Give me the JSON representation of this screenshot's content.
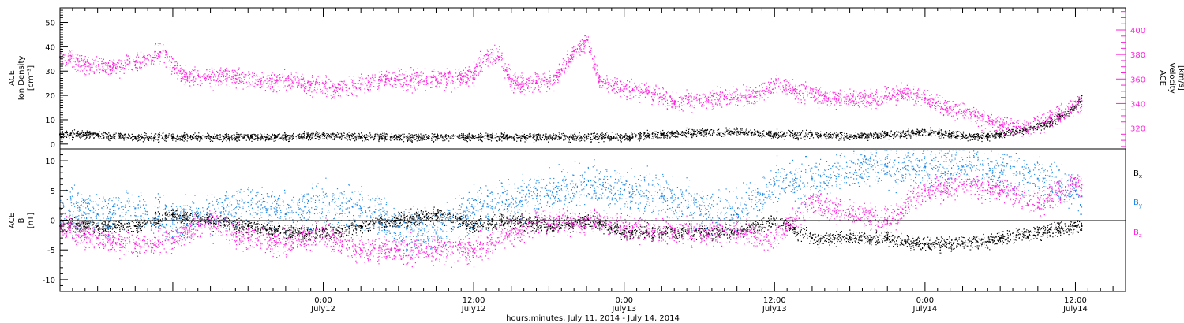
{
  "colors": {
    "axis": "#000000",
    "magenta": "#ff22dd",
    "blue": "#1e88e5",
    "black": "#000000",
    "background": "#ffffff"
  },
  "labels": {
    "xtitle": "hours:minutes, July 11, 2014 - July 14, 2014",
    "top_left_axis": [
      "ACE",
      "Ion Density",
      "[cm⁻³]"
    ],
    "top_right_axis": [
      "ACE",
      "Velocity",
      "[km/s]"
    ],
    "bottom_left_axis": [
      "ACE",
      "B",
      "[nT]"
    ],
    "legend": [
      {
        "text": "Bx",
        "color": "#000000"
      },
      {
        "text": "By",
        "color": "#1e88e5"
      },
      {
        "text": "Bz",
        "color": "#ff22dd"
      }
    ]
  },
  "chart_data": [
    {
      "type": "scatter",
      "panel": "ion-density-velocity",
      "x_unit": "hours since 2014-07-11 00:00",
      "xlim": [
        3,
        88
      ],
      "x_ticks": [
        {
          "x": 24,
          "label": "0:00",
          "sublabel": "July12"
        },
        {
          "x": 36,
          "label": "12:00",
          "sublabel": "July12"
        },
        {
          "x": 48,
          "label": "0:00",
          "sublabel": "July13"
        },
        {
          "x": 60,
          "label": "12:00",
          "sublabel": "July13"
        },
        {
          "x": 72,
          "label": "0:00",
          "sublabel": "July14"
        },
        {
          "x": 84,
          "label": "12:00",
          "sublabel": "July14"
        }
      ],
      "ylim_left": [
        -2,
        56
      ],
      "yticks_left": [
        0,
        10,
        20,
        30,
        40,
        50
      ],
      "ylim_right": [
        303,
        418
      ],
      "yticks_right": [
        320,
        340,
        360,
        380,
        400
      ],
      "series": [
        {
          "name": "Ion Density",
          "axis": "left",
          "color": "#000000",
          "x": [
            3,
            6,
            9,
            12,
            15,
            18,
            21,
            24,
            27,
            30,
            33,
            36,
            39,
            42,
            45,
            48,
            51,
            54,
            57,
            60,
            63,
            66,
            69,
            72,
            74,
            76,
            78,
            80,
            82,
            84,
            84.5
          ],
          "y": [
            4,
            4,
            3,
            3,
            3,
            3,
            3,
            4,
            3,
            3,
            3,
            3,
            3,
            3,
            3,
            3,
            4,
            5,
            5,
            4,
            4,
            3,
            4,
            5,
            4,
            3,
            4,
            6,
            9,
            15,
            20
          ]
        },
        {
          "name": "Velocity",
          "axis": "right",
          "color": "#ff22dd",
          "x": [
            3,
            5,
            7,
            9,
            11,
            13,
            15,
            17,
            19,
            21,
            23,
            25,
            27,
            29,
            31,
            33,
            35,
            36,
            37,
            38,
            39,
            40,
            41,
            42,
            43,
            44,
            45,
            46,
            48,
            50,
            52,
            54,
            56,
            58,
            60,
            62,
            64,
            66,
            68,
            70,
            72,
            74,
            76,
            78,
            80,
            82,
            84,
            84.5
          ],
          "y": [
            378,
            372,
            370,
            374,
            382,
            362,
            362,
            363,
            358,
            359,
            355,
            353,
            356,
            360,
            359,
            360,
            360,
            365,
            380,
            378,
            358,
            356,
            357,
            358,
            368,
            383,
            392,
            358,
            352,
            350,
            340,
            343,
            346,
            345,
            356,
            350,
            346,
            343,
            343,
            350,
            344,
            336,
            330,
            322,
            320,
            328,
            338,
            342
          ]
        }
      ]
    },
    {
      "type": "scatter",
      "panel": "magnetic-field",
      "x_unit": "hours since 2014-07-11 00:00",
      "xlim": [
        3,
        88
      ],
      "ylim": [
        -12,
        12
      ],
      "yticks": [
        -10,
        -5,
        0,
        5,
        10
      ],
      "zero_line": 0,
      "series": [
        {
          "name": "Bx",
          "color": "#000000",
          "x": [
            3,
            6,
            9,
            12,
            15,
            18,
            21,
            24,
            27,
            30,
            33,
            36,
            39,
            42,
            45,
            48,
            51,
            54,
            57,
            60,
            63,
            66,
            69,
            72,
            75,
            78,
            81,
            84,
            84.5
          ],
          "y": [
            -1,
            -1,
            -1,
            1,
            0,
            -1,
            -2,
            -2,
            -1,
            0,
            1,
            -1,
            0,
            -1,
            0,
            -2,
            -2,
            -2,
            -2,
            0,
            -3,
            -3,
            -3,
            -4,
            -4,
            -3,
            -2,
            -1,
            -1
          ]
        },
        {
          "name": "By",
          "color": "#1e88e5",
          "x": [
            3,
            6,
            9,
            12,
            15,
            18,
            21,
            24,
            27,
            30,
            33,
            36,
            39,
            42,
            45,
            48,
            51,
            54,
            57,
            60,
            63,
            66,
            69,
            72,
            75,
            78,
            81,
            84,
            84.5
          ],
          "y": [
            2,
            1,
            2,
            0,
            1,
            3,
            1,
            3,
            2,
            -1,
            -2,
            2,
            3,
            5,
            6,
            5,
            4,
            2,
            1,
            6,
            7,
            8,
            9,
            9,
            9,
            8,
            7,
            5,
            4
          ],
          "scatter": "high"
        },
        {
          "name": "Bz",
          "color": "#ff22dd",
          "x": [
            3,
            6,
            9,
            12,
            15,
            18,
            21,
            24,
            27,
            30,
            33,
            36,
            39,
            42,
            45,
            48,
            51,
            54,
            57,
            60,
            63,
            66,
            69,
            72,
            75,
            78,
            81,
            84,
            84.5
          ],
          "y": [
            -1,
            -3,
            -4,
            -3,
            0,
            -3,
            -4,
            -2,
            -5,
            -5,
            -5,
            -5,
            -2,
            0,
            0,
            -1,
            -2,
            -2,
            -2,
            -3,
            3,
            1,
            0,
            5,
            6,
            5,
            3,
            6,
            6
          ],
          "scatter": "medium"
        }
      ]
    }
  ]
}
